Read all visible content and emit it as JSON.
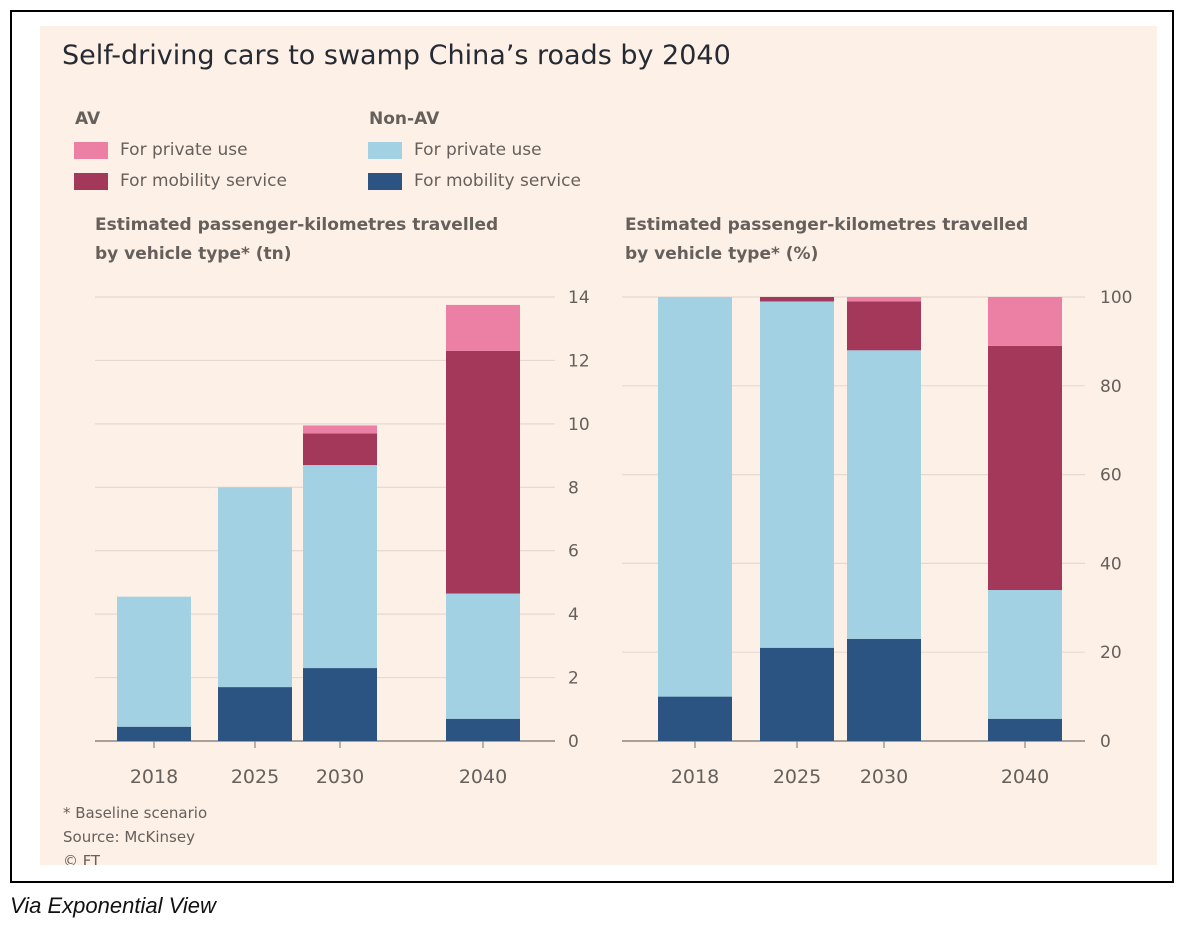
{
  "title": "Self-driving cars to swamp China’s roads by 2040",
  "legend": {
    "groups": [
      {
        "heading": "AV",
        "items": [
          {
            "label": "For private use",
            "color": "#eb7fa4"
          },
          {
            "label": "For mobility service",
            "color": "#a3385a"
          }
        ]
      },
      {
        "heading": "Non-AV",
        "items": [
          {
            "label": "For private use",
            "color": "#a1d1e3"
          },
          {
            "label": "For mobility service",
            "color": "#2b5483"
          }
        ]
      }
    ]
  },
  "chart_data": [
    {
      "type": "bar",
      "stacked": true,
      "subtitle_line1": "Estimated passenger-kilometres travelled",
      "subtitle_line2": "by vehicle type* (tn)",
      "categories": [
        "2018",
        "2025",
        "2030",
        "2040"
      ],
      "ylim": [
        0,
        14
      ],
      "yticks": [
        "0",
        "2",
        "4",
        "6",
        "8",
        "10",
        "12",
        "14"
      ],
      "grid": true,
      "series": [
        {
          "name": "Non-AV For mobility service",
          "color": "#2b5483",
          "values": [
            0.45,
            1.7,
            2.3,
            0.7
          ]
        },
        {
          "name": "Non-AV For private use",
          "color": "#a1d1e3",
          "values": [
            4.1,
            6.3,
            6.4,
            3.95
          ]
        },
        {
          "name": "AV For mobility service",
          "color": "#a3385a",
          "values": [
            0,
            0,
            1.0,
            7.65
          ]
        },
        {
          "name": "AV For private use",
          "color": "#eb7fa4",
          "values": [
            0,
            0,
            0.25,
            1.45
          ]
        }
      ]
    },
    {
      "type": "bar",
      "stacked": true,
      "subtitle_line1": "Estimated passenger-kilometres travelled",
      "subtitle_line2": "by vehicle type* (%)",
      "categories": [
        "2018",
        "2025",
        "2030",
        "2040"
      ],
      "ylim": [
        0,
        100
      ],
      "yticks": [
        "0",
        "20",
        "40",
        "60",
        "80",
        "100"
      ],
      "grid": true,
      "series": [
        {
          "name": "Non-AV For mobility service",
          "color": "#2b5483",
          "values": [
            10,
            21,
            23,
            5
          ]
        },
        {
          "name": "Non-AV For private use",
          "color": "#a1d1e3",
          "values": [
            90,
            78,
            65,
            29
          ]
        },
        {
          "name": "AV For mobility service",
          "color": "#a3385a",
          "values": [
            0,
            1,
            11,
            55
          ]
        },
        {
          "name": "AV For private use",
          "color": "#eb7fa4",
          "values": [
            0,
            0,
            1,
            11
          ]
        }
      ]
    }
  ],
  "footnotes": [
    "* Baseline scenario",
    "Source: McKinsey",
    "© FT"
  ],
  "caption": "Via Exponential View"
}
